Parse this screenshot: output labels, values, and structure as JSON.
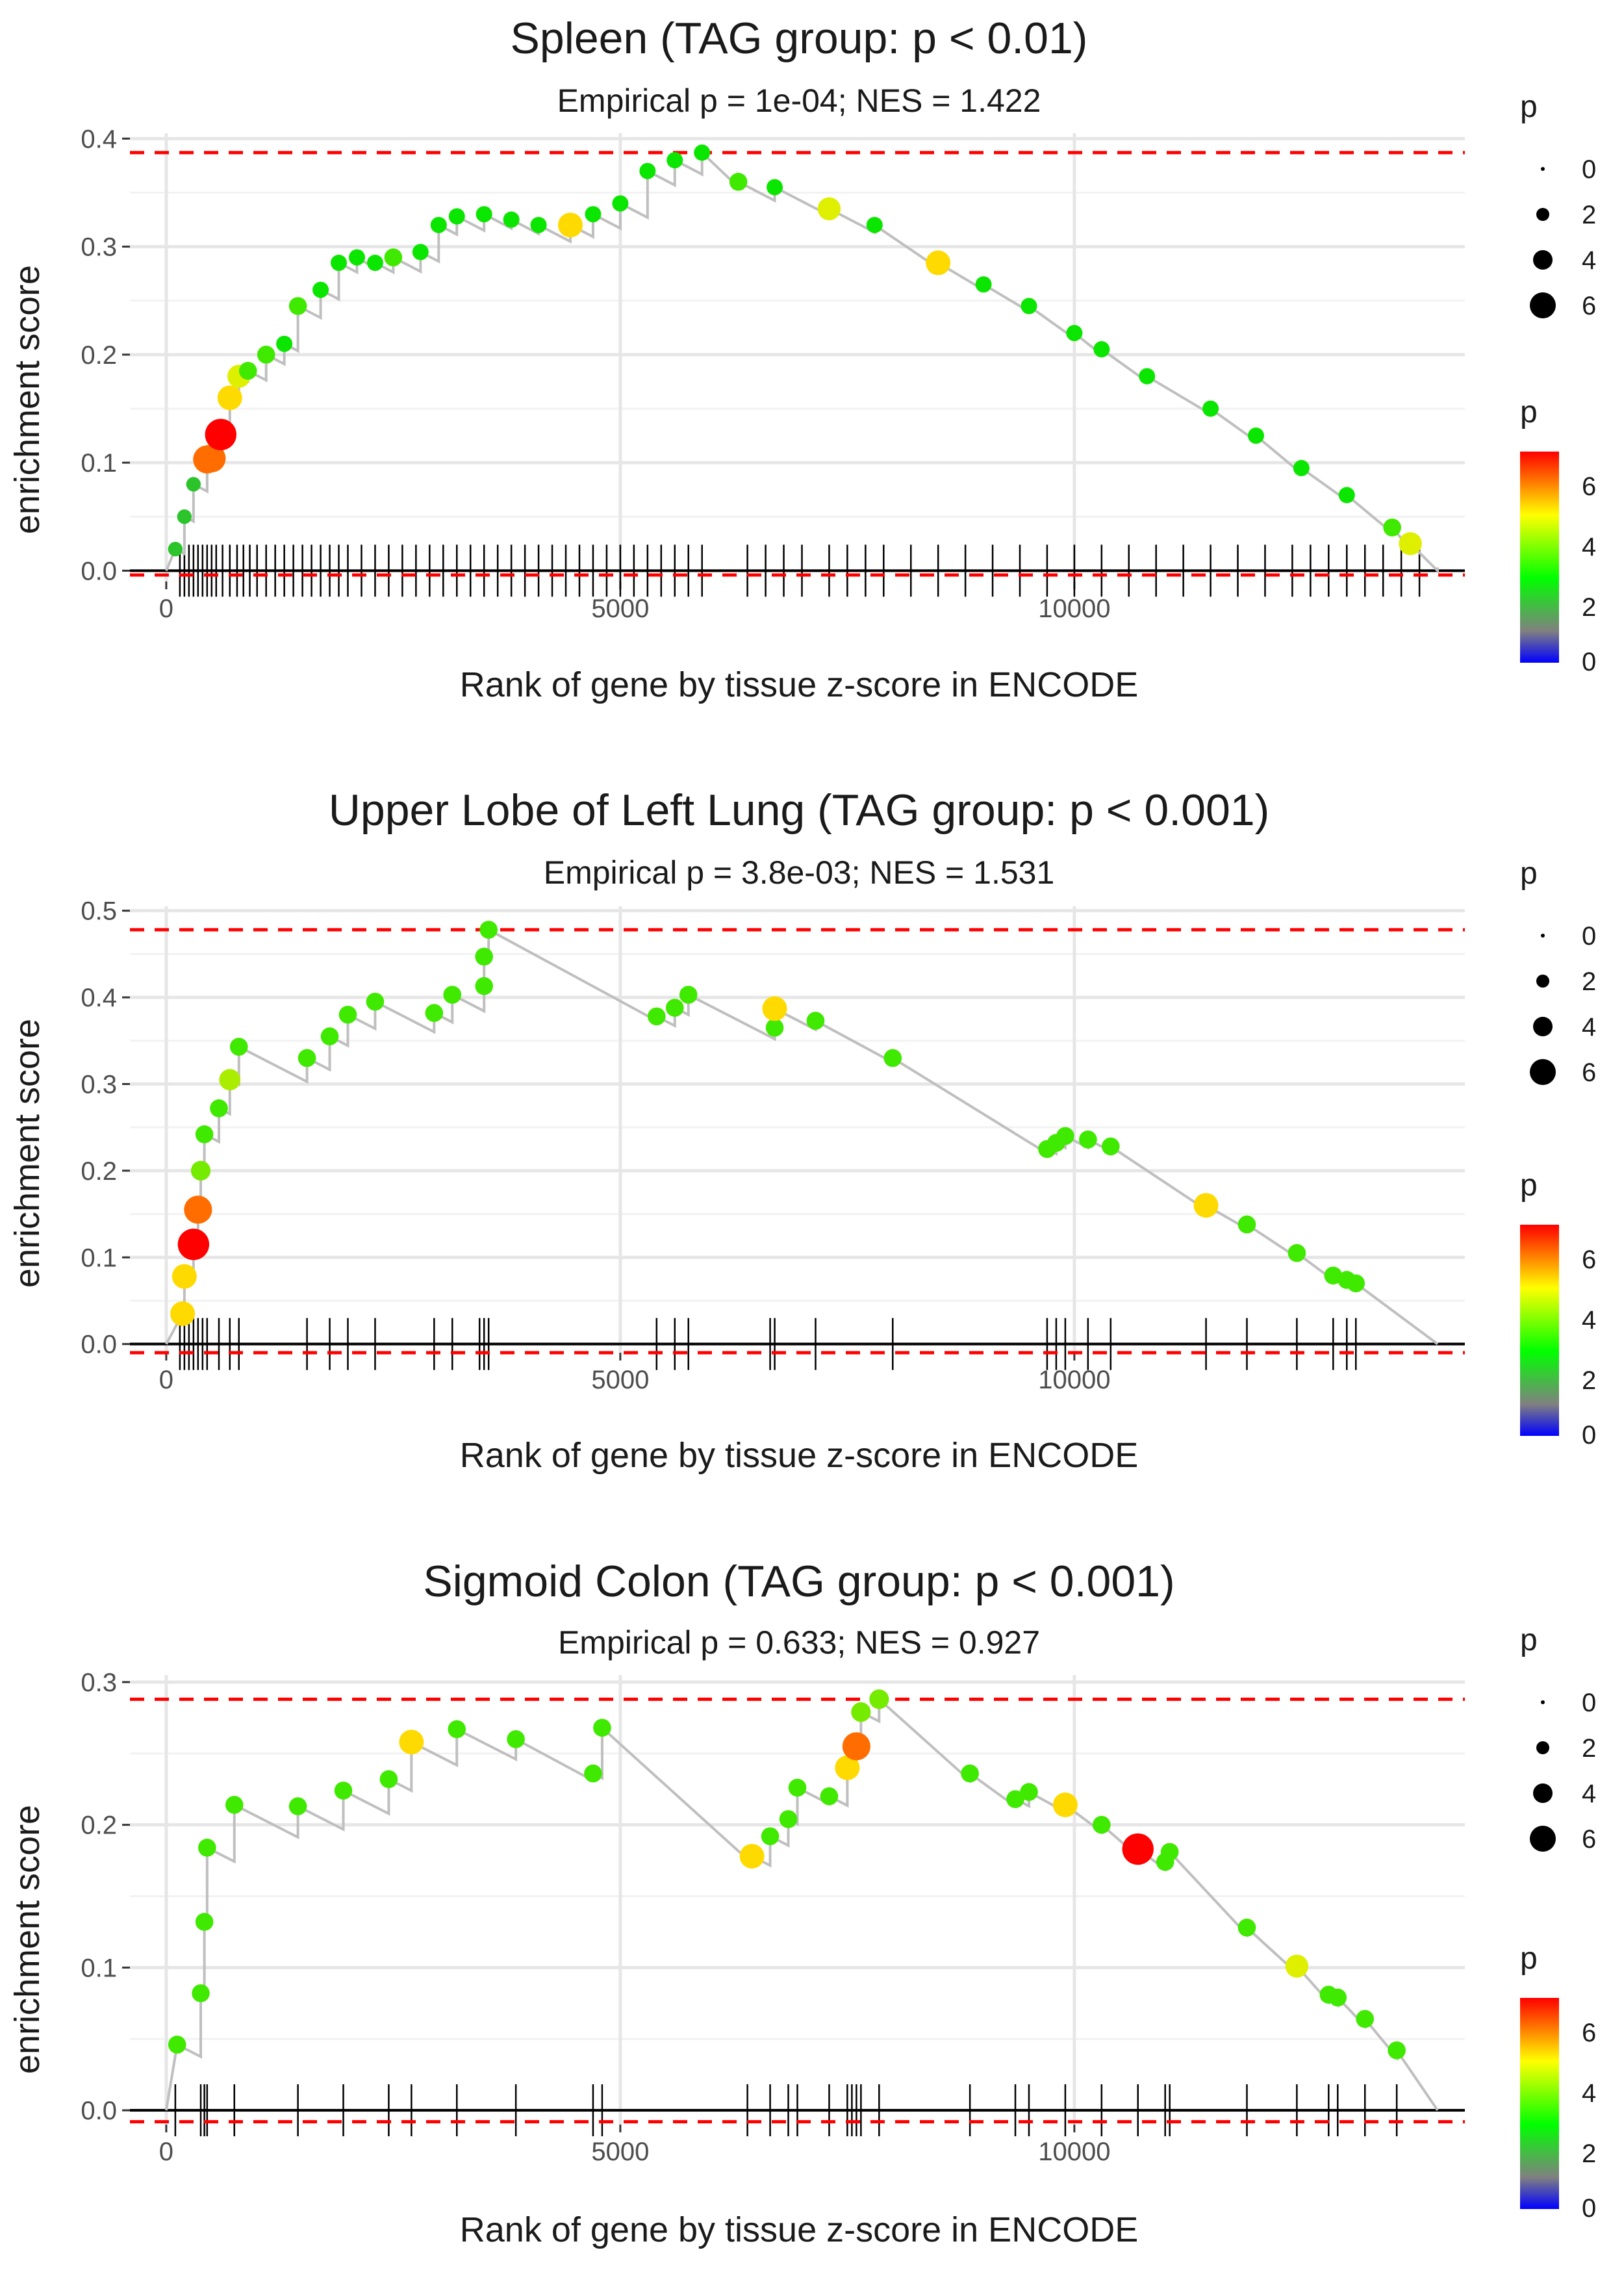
{
  "chart_data": [
    {
      "type": "scatter",
      "title": "Spleen (TAG group: p < 0.01)",
      "subtitle": "Empirical p = 1e-04; NES = 1.422",
      "xlabel": "Rank of gene by tissue z-score in ENCODE",
      "ylabel": "enrichment score",
      "xlim": [
        -400,
        14300
      ],
      "ylim": [
        -0.01,
        0.405
      ],
      "xticks": [
        0,
        5000,
        10000
      ],
      "xtick_labels": [
        "0",
        "5000",
        "10000"
      ],
      "yticks": [
        0.0,
        0.1,
        0.2,
        0.3,
        0.4
      ],
      "ytick_labels": [
        "0.0",
        "0.1",
        "0.2",
        "0.3",
        "0.4"
      ],
      "es_max": 0.387,
      "es_min": -0.004,
      "x_end": 14000,
      "series": [
        {
          "name": "running enrichment score",
          "points": [
            {
              "x": 100,
              "y": 0.02,
              "p": 2
            },
            {
              "x": 200,
              "y": 0.05,
              "p": 2
            },
            {
              "x": 300,
              "y": 0.08,
              "p": 2
            },
            {
              "x": 450,
              "y": 0.103,
              "p": 6
            },
            {
              "x": 500,
              "y": 0.104,
              "p": 6
            },
            {
              "x": 600,
              "y": 0.126,
              "p": 7
            },
            {
              "x": 700,
              "y": 0.16,
              "p": 5
            },
            {
              "x": 800,
              "y": 0.18,
              "p": 4.5
            },
            {
              "x": 900,
              "y": 0.185,
              "p": 3
            },
            {
              "x": 1100,
              "y": 0.2,
              "p": 3
            },
            {
              "x": 1300,
              "y": 0.21,
              "p": 2.5
            },
            {
              "x": 1450,
              "y": 0.245,
              "p": 3
            },
            {
              "x": 1700,
              "y": 0.26,
              "p": 2.5
            },
            {
              "x": 1900,
              "y": 0.285,
              "p": 2.5
            },
            {
              "x": 2100,
              "y": 0.29,
              "p": 2.5
            },
            {
              "x": 2300,
              "y": 0.285,
              "p": 2.5
            },
            {
              "x": 2500,
              "y": 0.29,
              "p": 3
            },
            {
              "x": 2800,
              "y": 0.295,
              "p": 2.5
            },
            {
              "x": 3000,
              "y": 0.32,
              "p": 2.5
            },
            {
              "x": 3200,
              "y": 0.328,
              "p": 2.5
            },
            {
              "x": 3500,
              "y": 0.33,
              "p": 2.5
            },
            {
              "x": 3800,
              "y": 0.325,
              "p": 2.5
            },
            {
              "x": 4100,
              "y": 0.32,
              "p": 2.5
            },
            {
              "x": 4450,
              "y": 0.32,
              "p": 5
            },
            {
              "x": 4700,
              "y": 0.33,
              "p": 2.5
            },
            {
              "x": 5000,
              "y": 0.34,
              "p": 2.5
            },
            {
              "x": 5300,
              "y": 0.37,
              "p": 2.5
            },
            {
              "x": 5600,
              "y": 0.38,
              "p": 2.5
            },
            {
              "x": 5900,
              "y": 0.387,
              "p": 2.5
            },
            {
              "x": 6300,
              "y": 0.36,
              "p": 3
            },
            {
              "x": 6700,
              "y": 0.355,
              "p": 2.5
            },
            {
              "x": 7300,
              "y": 0.335,
              "p": 4.5
            },
            {
              "x": 7800,
              "y": 0.32,
              "p": 2.5
            },
            {
              "x": 8500,
              "y": 0.285,
              "p": 5
            },
            {
              "x": 9000,
              "y": 0.265,
              "p": 2.5
            },
            {
              "x": 9500,
              "y": 0.245,
              "p": 2.5
            },
            {
              "x": 10000,
              "y": 0.22,
              "p": 2.5
            },
            {
              "x": 10300,
              "y": 0.205,
              "p": 2.5
            },
            {
              "x": 10800,
              "y": 0.18,
              "p": 2.5
            },
            {
              "x": 11500,
              "y": 0.15,
              "p": 2.5
            },
            {
              "x": 12000,
              "y": 0.125,
              "p": 2.5
            },
            {
              "x": 12500,
              "y": 0.095,
              "p": 2.5
            },
            {
              "x": 13000,
              "y": 0.07,
              "p": 2.5
            },
            {
              "x": 13500,
              "y": 0.04,
              "p": 3
            },
            {
              "x": 13700,
              "y": 0.025,
              "p": 4.5
            },
            {
              "x": 14000,
              "y": 0.003,
              "p": 2.5
            }
          ]
        }
      ],
      "rug": [
        150,
        200,
        250,
        300,
        350,
        400,
        450,
        500,
        550,
        620,
        700,
        780,
        850,
        920,
        1000,
        1100,
        1200,
        1300,
        1400,
        1500,
        1600,
        1700,
        1800,
        1900,
        2000,
        2150,
        2300,
        2450,
        2600,
        2750,
        2900,
        3050,
        3200,
        3350,
        3500,
        3650,
        3800,
        3950,
        4100,
        4250,
        4400,
        4550,
        4700,
        4850,
        5000,
        5150,
        5300,
        5450,
        5600,
        5750,
        5900,
        6400,
        6600,
        6800,
        7000,
        7300,
        7500,
        7700,
        7900,
        8200,
        8500,
        8800,
        9100,
        9400,
        9700,
        10000,
        10300,
        10600,
        10900,
        11200,
        11500,
        11800,
        12100,
        12400,
        12600,
        12800,
        13000,
        13200,
        13400,
        13600,
        13800
      ]
    },
    {
      "type": "scatter",
      "title": "Upper Lobe of Left Lung (TAG group: p < 0.001)",
      "subtitle": "Empirical p = 3.8e-03; NES = 1.531",
      "xlabel": "Rank of gene by tissue z-score in ENCODE",
      "ylabel": "enrichment score",
      "xlim": [
        -400,
        14300
      ],
      "ylim": [
        -0.01,
        0.505
      ],
      "xticks": [
        0,
        5000,
        10000
      ],
      "xtick_labels": [
        "0",
        "5000",
        "10000"
      ],
      "yticks": [
        0.0,
        0.1,
        0.2,
        0.3,
        0.4,
        0.5
      ],
      "ytick_labels": [
        "0.0",
        "0.1",
        "0.2",
        "0.3",
        "0.4",
        "0.5"
      ],
      "es_max": 0.478,
      "es_min": -0.01,
      "x_end": 14000,
      "series": [
        {
          "name": "running enrichment score",
          "points": [
            {
              "x": 180,
              "y": 0.035,
              "p": 5
            },
            {
              "x": 200,
              "y": 0.078,
              "p": 5
            },
            {
              "x": 300,
              "y": 0.115,
              "p": 7
            },
            {
              "x": 350,
              "y": 0.155,
              "p": 6
            },
            {
              "x": 380,
              "y": 0.2,
              "p": 3.5
            },
            {
              "x": 420,
              "y": 0.242,
              "p": 3
            },
            {
              "x": 580,
              "y": 0.272,
              "p": 3
            },
            {
              "x": 700,
              "y": 0.305,
              "p": 4
            },
            {
              "x": 800,
              "y": 0.343,
              "p": 3
            },
            {
              "x": 1550,
              "y": 0.33,
              "p": 3
            },
            {
              "x": 1800,
              "y": 0.355,
              "p": 3
            },
            {
              "x": 2000,
              "y": 0.38,
              "p": 3
            },
            {
              "x": 2300,
              "y": 0.395,
              "p": 3
            },
            {
              "x": 2950,
              "y": 0.382,
              "p": 3
            },
            {
              "x": 3150,
              "y": 0.403,
              "p": 3
            },
            {
              "x": 3500,
              "y": 0.413,
              "p": 3
            },
            {
              "x": 3500,
              "y": 0.447,
              "p": 3
            },
            {
              "x": 3550,
              "y": 0.478,
              "p": 3
            },
            {
              "x": 5400,
              "y": 0.378,
              "p": 3
            },
            {
              "x": 5600,
              "y": 0.388,
              "p": 3
            },
            {
              "x": 5750,
              "y": 0.403,
              "p": 3
            },
            {
              "x": 6700,
              "y": 0.365,
              "p": 3
            },
            {
              "x": 6700,
              "y": 0.387,
              "p": 5
            },
            {
              "x": 7150,
              "y": 0.373,
              "p": 3
            },
            {
              "x": 8000,
              "y": 0.33,
              "p": 3
            },
            {
              "x": 9700,
              "y": 0.225,
              "p": 3
            },
            {
              "x": 9800,
              "y": 0.232,
              "p": 3
            },
            {
              "x": 9900,
              "y": 0.24,
              "p": 3
            },
            {
              "x": 10150,
              "y": 0.236,
              "p": 3
            },
            {
              "x": 10400,
              "y": 0.228,
              "p": 3
            },
            {
              "x": 11450,
              "y": 0.16,
              "p": 5
            },
            {
              "x": 11900,
              "y": 0.138,
              "p": 3
            },
            {
              "x": 12450,
              "y": 0.105,
              "p": 3
            },
            {
              "x": 12850,
              "y": 0.079,
              "p": 3
            },
            {
              "x": 13000,
              "y": 0.074,
              "p": 3
            },
            {
              "x": 13100,
              "y": 0.07,
              "p": 3
            },
            {
              "x": 14000,
              "y": 0.0,
              "p": 3
            }
          ]
        }
      ],
      "rug": [
        150,
        200,
        250,
        300,
        350,
        400,
        450,
        580,
        700,
        800,
        1550,
        1800,
        2000,
        2300,
        2950,
        3150,
        3450,
        3500,
        3550,
        5400,
        5600,
        5750,
        6650,
        6700,
        7150,
        8000,
        9700,
        9800,
        9900,
        10150,
        10400,
        11450,
        11900,
        12450,
        12850,
        13000,
        13100
      ]
    },
    {
      "type": "scatter",
      "title": "Sigmoid Colon (TAG group: p < 0.001)",
      "subtitle": "Empirical p = 0.633; NES = 0.927",
      "xlabel": "Rank of gene by tissue z-score in ENCODE",
      "ylabel": "enrichment score",
      "xlim": [
        -400,
        14300
      ],
      "ylim": [
        -0.01,
        0.305
      ],
      "xticks": [
        0,
        5000,
        10000
      ],
      "xtick_labels": [
        "0",
        "5000",
        "10000"
      ],
      "yticks": [
        0.0,
        0.1,
        0.2,
        0.3
      ],
      "ytick_labels": [
        "0.0",
        "0.1",
        "0.2",
        "0.3"
      ],
      "es_max": 0.288,
      "es_min": -0.008,
      "x_end": 14000,
      "series": [
        {
          "name": "running enrichment score",
          "points": [
            {
              "x": 120,
              "y": 0.046,
              "p": 3
            },
            {
              "x": 380,
              "y": 0.082,
              "p": 3
            },
            {
              "x": 420,
              "y": 0.132,
              "p": 3
            },
            {
              "x": 450,
              "y": 0.184,
              "p": 3
            },
            {
              "x": 750,
              "y": 0.214,
              "p": 3
            },
            {
              "x": 1450,
              "y": 0.213,
              "p": 3
            },
            {
              "x": 1950,
              "y": 0.224,
              "p": 3
            },
            {
              "x": 2450,
              "y": 0.232,
              "p": 3
            },
            {
              "x": 2700,
              "y": 0.258,
              "p": 5
            },
            {
              "x": 3200,
              "y": 0.267,
              "p": 3
            },
            {
              "x": 3850,
              "y": 0.26,
              "p": 3
            },
            {
              "x": 4700,
              "y": 0.236,
              "p": 3
            },
            {
              "x": 4800,
              "y": 0.268,
              "p": 3
            },
            {
              "x": 6450,
              "y": 0.178,
              "p": 5
            },
            {
              "x": 6650,
              "y": 0.192,
              "p": 3
            },
            {
              "x": 6850,
              "y": 0.204,
              "p": 3
            },
            {
              "x": 6950,
              "y": 0.226,
              "p": 3
            },
            {
              "x": 7300,
              "y": 0.22,
              "p": 3
            },
            {
              "x": 7500,
              "y": 0.24,
              "p": 5
            },
            {
              "x": 7600,
              "y": 0.255,
              "p": 6
            },
            {
              "x": 7650,
              "y": 0.279,
              "p": 3.5
            },
            {
              "x": 7850,
              "y": 0.288,
              "p": 3.5
            },
            {
              "x": 8850,
              "y": 0.236,
              "p": 3
            },
            {
              "x": 9350,
              "y": 0.218,
              "p": 3
            },
            {
              "x": 9500,
              "y": 0.223,
              "p": 3
            },
            {
              "x": 9900,
              "y": 0.214,
              "p": 5
            },
            {
              "x": 10300,
              "y": 0.2,
              "p": 3
            },
            {
              "x": 10700,
              "y": 0.183,
              "p": 7
            },
            {
              "x": 11000,
              "y": 0.174,
              "p": 3
            },
            {
              "x": 11050,
              "y": 0.181,
              "p": 3
            },
            {
              "x": 11900,
              "y": 0.128,
              "p": 3
            },
            {
              "x": 12450,
              "y": 0.101,
              "p": 4.5
            },
            {
              "x": 12800,
              "y": 0.081,
              "p": 3
            },
            {
              "x": 12900,
              "y": 0.079,
              "p": 3
            },
            {
              "x": 13200,
              "y": 0.064,
              "p": 3
            },
            {
              "x": 13550,
              "y": 0.042,
              "p": 3
            },
            {
              "x": 14000,
              "y": 0.0,
              "p": 3
            }
          ]
        }
      ],
      "rug": [
        100,
        380,
        420,
        450,
        750,
        1450,
        1950,
        2450,
        2700,
        3200,
        3850,
        4700,
        4800,
        6400,
        6650,
        6850,
        6950,
        7300,
        7500,
        7550,
        7600,
        7650,
        7850,
        8850,
        9350,
        9500,
        9900,
        10300,
        10700,
        11000,
        11050,
        11900,
        12450,
        12800,
        12900,
        13200,
        13550
      ]
    }
  ],
  "legend": {
    "size_title": "p",
    "size_labels": [
      "0",
      "2",
      "4",
      "6"
    ],
    "color_title": "p",
    "color_labels": [
      "6",
      "4",
      "2",
      "0"
    ],
    "color_stops": [
      "#ff0000",
      "#ffff00",
      "#00ff00",
      "#808080",
      "#0000ff"
    ]
  },
  "colors": {
    "line": "#bfbfbf",
    "reference": "#ff0000",
    "zero": "#000000"
  }
}
